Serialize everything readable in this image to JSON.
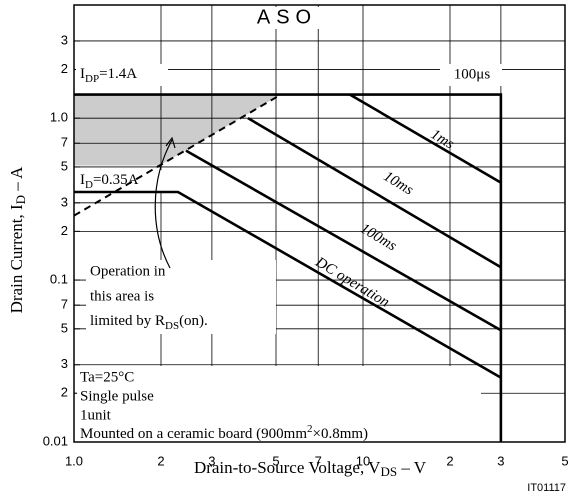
{
  "chart_data": {
    "type": "line",
    "title": "ASO",
    "xlabel": {
      "text": "Drain-to-Source Voltage, V",
      "sub": "DS",
      "rest": " – V"
    },
    "ylabel": {
      "text": "Drain Current, I",
      "sub": "D",
      "rest": " – A"
    },
    "xscale": "log",
    "yscale": "log",
    "grid": true,
    "xlim": [
      1,
      50
    ],
    "ylim": [
      0.01,
      5
    ],
    "xticks": [
      {
        "value": 1,
        "label": "1.0"
      },
      2,
      3,
      5,
      7,
      10,
      {
        "value": 20,
        "label": "2"
      },
      {
        "value": 30,
        "label": "3"
      },
      {
        "value": 50,
        "label": "5"
      }
    ],
    "yticks": [
      3,
      2,
      {
        "value": 1,
        "label": "1.0"
      },
      {
        "value": 0.7,
        "label": "7"
      },
      {
        "value": 0.5,
        "label": "5"
      },
      {
        "value": 0.3,
        "label": "3"
      },
      {
        "value": 0.2,
        "label": "2"
      },
      0.1,
      {
        "value": 0.07,
        "label": "7"
      },
      {
        "value": 0.05,
        "label": "5"
      },
      {
        "value": 0.03,
        "label": "3"
      },
      {
        "value": 0.02,
        "label": "2"
      },
      0.01
    ],
    "series": [
      {
        "name": "100μs",
        "color": "#000000",
        "x": [
          1,
          30,
          30
        ],
        "values": [
          1.4,
          1.4,
          0.01
        ]
      },
      {
        "name": "1ms",
        "color": "#000000",
        "x": [
          9,
          30
        ],
        "values": [
          1.4,
          0.4
        ]
      },
      {
        "name": "10ms",
        "color": "#000000",
        "x": [
          4,
          30
        ],
        "values": [
          1.0,
          0.12
        ]
      },
      {
        "name": "100ms",
        "color": "#000000",
        "x": [
          2.44,
          30
        ],
        "values": [
          0.63,
          0.049
        ]
      },
      {
        "name": "DC operation",
        "color": "#000000",
        "x": [
          1,
          2.29,
          30
        ],
        "values": [
          0.35,
          0.35,
          0.025
        ]
      },
      {
        "color": "#000000",
        "dash": true,
        "x": [
          1,
          5.2
        ],
        "values": [
          0.25,
          1.4
        ]
      }
    ],
    "shaded": {
      "color": "#cccccc",
      "x": [
        1,
        5.2,
        1.98,
        1
      ],
      "y": [
        1.4,
        1.4,
        0.51,
        0.51
      ]
    },
    "annotations": {
      "idp": {
        "text": "I",
        "sub": "DP",
        "rest": "=1.4A"
      },
      "id": {
        "text": "I",
        "sub": "D",
        "rest": "=0.35A"
      },
      "area": [
        "Operation in",
        "this area is",
        {
          "text": "limited by R",
          "sub": "DS",
          "rest": "(on)."
        }
      ],
      "conditions": [
        "Ta=25°C",
        "Single pulse",
        "1unit",
        {
          "text": "Mounted on a ceramic board (900mm",
          "sup": "2",
          "rest": "×0.8mm)"
        }
      ]
    },
    "figure_id": "IT01117"
  }
}
